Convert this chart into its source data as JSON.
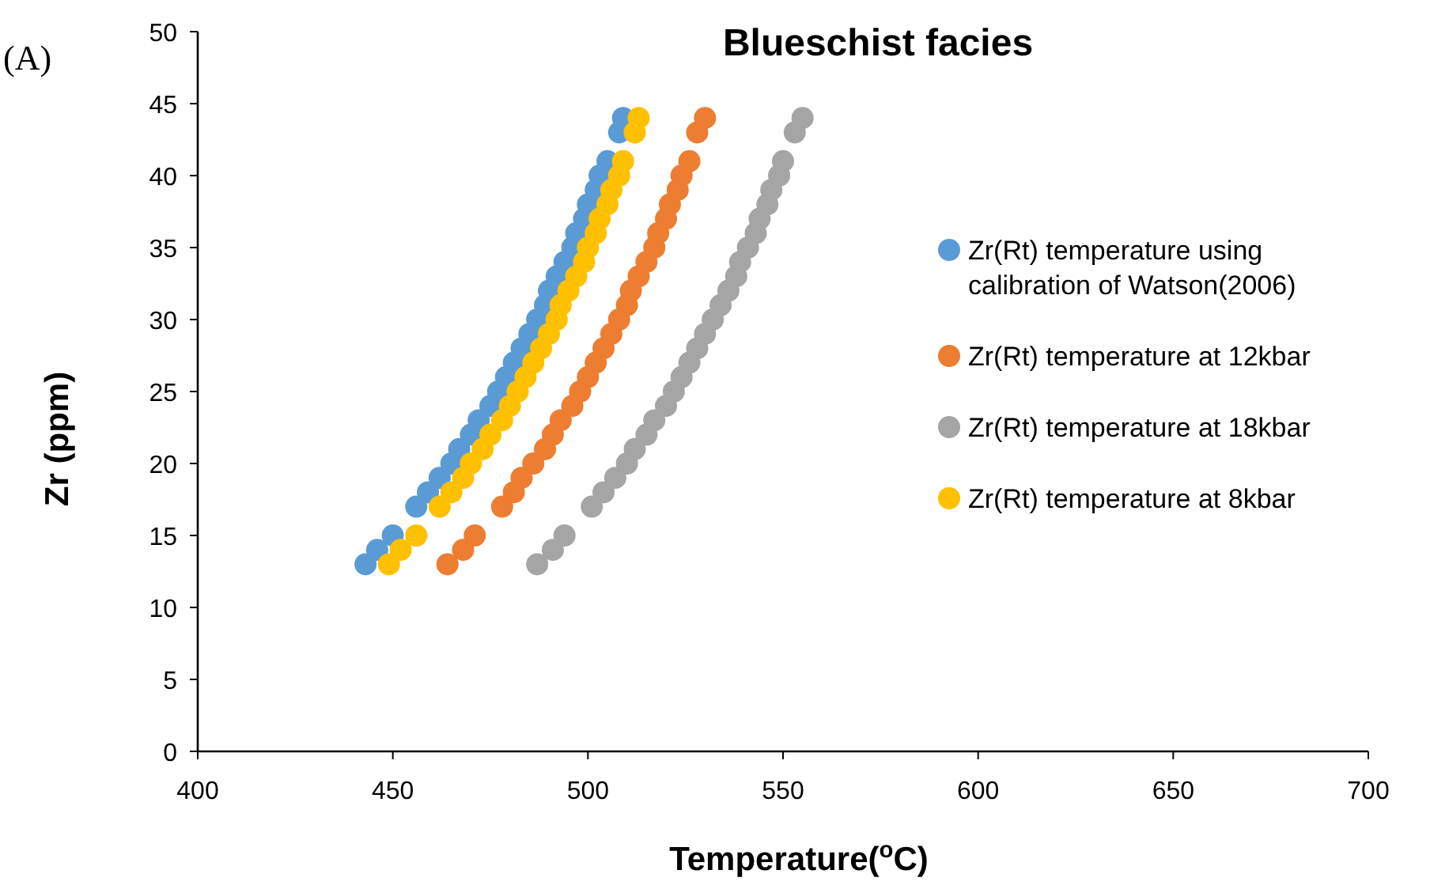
{
  "chart_data": {
    "type": "scatter",
    "title": "Blueschist facies",
    "xlabel": "Temperature($^{o}$C)",
    "ylabel": "Zr (ppm)",
    "annotations": [
      "(A)"
    ],
    "xlim": [
      400,
      700
    ],
    "xticks": [
      400,
      450,
      500,
      550,
      600,
      650,
      700
    ],
    "ylim": [
      0,
      50
    ],
    "yticks": [
      0,
      5,
      10,
      15,
      20,
      25,
      30,
      35,
      40,
      45,
      50
    ],
    "grid": false,
    "legend": "right",
    "marker": "circle",
    "series": [
      {
        "name": "Zr(Rt) temperature using calibration of Watson(2006)",
        "color": "#5b9bd5",
        "x": [
          443,
          446,
          450,
          456,
          459,
          462,
          465,
          467,
          470,
          472,
          475,
          477,
          479,
          481,
          483,
          485,
          487,
          489,
          490,
          492,
          494,
          496,
          497,
          499,
          500,
          502,
          503,
          505,
          508,
          509
        ],
        "values": [
          13,
          14,
          15,
          17,
          18,
          19,
          20,
          21,
          22,
          23,
          24,
          25,
          26,
          27,
          28,
          29,
          30,
          31,
          32,
          33,
          34,
          35,
          36,
          37,
          38,
          39,
          40,
          41,
          43,
          44
        ]
      },
      {
        "name": "Zr(Rt) temperature at 12kbar",
        "color": "#ed7d31",
        "x": [
          464,
          468,
          471,
          478,
          481,
          483,
          486,
          489,
          491,
          493,
          496,
          498,
          500,
          502,
          504,
          506,
          508,
          510,
          511,
          513,
          515,
          517,
          518,
          520,
          521,
          523,
          524,
          526,
          528,
          530
        ],
        "values": [
          13,
          14,
          15,
          17,
          18,
          19,
          20,
          21,
          22,
          23,
          24,
          25,
          26,
          27,
          28,
          29,
          30,
          31,
          32,
          33,
          34,
          35,
          36,
          37,
          38,
          39,
          40,
          41,
          43,
          44
        ]
      },
      {
        "name": "Zr(Rt) temperature at 18kbar",
        "color": "#a5a5a5",
        "x": [
          487,
          491,
          494,
          501,
          504,
          507,
          510,
          512,
          515,
          517,
          520,
          522,
          524,
          526,
          528,
          530,
          532,
          534,
          536,
          538,
          539,
          541,
          543,
          544,
          546,
          547,
          549,
          550,
          553,
          555
        ],
        "values": [
          13,
          14,
          15,
          17,
          18,
          19,
          20,
          21,
          22,
          23,
          24,
          25,
          26,
          27,
          28,
          29,
          30,
          31,
          32,
          33,
          34,
          35,
          36,
          37,
          38,
          39,
          40,
          41,
          43,
          44
        ]
      },
      {
        "name": "Zr(Rt) temperature at 8kbar",
        "color": "#ffc000",
        "x": [
          449,
          452,
          456,
          462,
          465,
          468,
          470,
          473,
          475,
          478,
          480,
          482,
          484,
          486,
          488,
          490,
          492,
          493,
          495,
          497,
          499,
          500,
          502,
          503,
          505,
          506,
          508,
          509,
          512,
          513
        ],
        "values": [
          13,
          14,
          15,
          17,
          18,
          19,
          20,
          21,
          22,
          23,
          24,
          25,
          26,
          27,
          28,
          29,
          30,
          31,
          32,
          33,
          34,
          35,
          36,
          37,
          38,
          39,
          40,
          41,
          43,
          44
        ]
      }
    ]
  }
}
